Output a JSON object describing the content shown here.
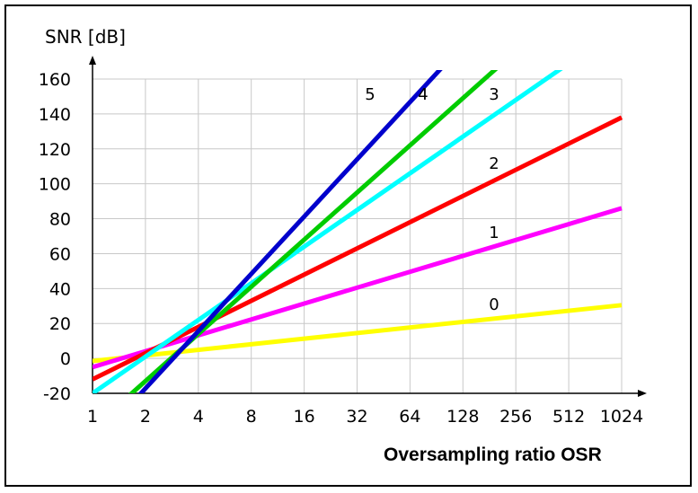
{
  "chart_data": {
    "type": "line",
    "xlabel": "Oversampling ratio OSR",
    "ylabel": "SNR [dB]",
    "xscale": "log2",
    "x_ticks": [
      1,
      2,
      4,
      8,
      16,
      32,
      64,
      128,
      256,
      512,
      1024
    ],
    "x_tick_labels": [
      "1",
      "2",
      "4",
      "8",
      "16",
      "32",
      "64",
      "128",
      "256",
      "512",
      "1024"
    ],
    "y_ticks": [
      -20,
      0,
      20,
      40,
      60,
      80,
      100,
      120,
      140,
      160
    ],
    "y_tick_labels": [
      "-20",
      "0",
      "20",
      "40",
      "60",
      "80",
      "100",
      "120",
      "140",
      "160"
    ],
    "xlim": [
      1,
      1024
    ],
    "ylim": [
      -20,
      160
    ],
    "grid": true,
    "series": [
      {
        "name": "0",
        "label": "0",
        "color": "#ffff00",
        "x": [
          1,
          1024
        ],
        "y": [
          -1.5,
          30.5
        ]
      },
      {
        "name": "1",
        "label": "1",
        "color": "#ff00ff",
        "x": [
          1,
          1024
        ],
        "y": [
          -5,
          86
        ]
      },
      {
        "name": "2",
        "label": "2",
        "color": "#ff0000",
        "x": [
          1,
          1024
        ],
        "y": [
          -12,
          138
        ]
      },
      {
        "name": "3",
        "label": "3",
        "color": "#00ffff",
        "x": [
          1,
          1024
        ],
        "y": [
          -20,
          190
        ]
      },
      {
        "name": "4",
        "label": "4",
        "color": "#00cc00",
        "x": [
          1,
          1024
        ],
        "y": [
          -40,
          230
        ]
      },
      {
        "name": "5",
        "label": "5",
        "color": "#0000cc",
        "x": [
          1,
          1024
        ],
        "y": [
          -50,
          278
        ]
      }
    ]
  }
}
